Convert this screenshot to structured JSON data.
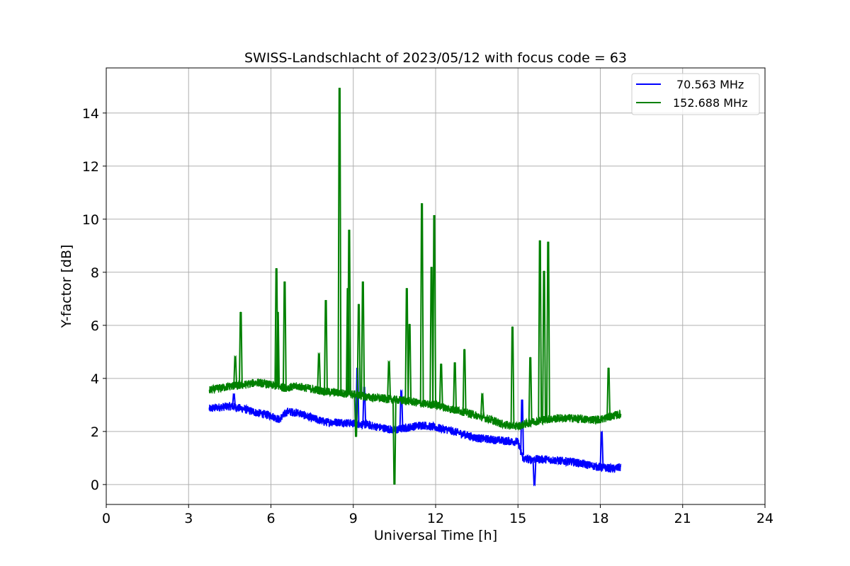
{
  "chart_data": {
    "type": "line",
    "title": "SWISS-Landschlacht of 2023/05/12 with focus code = 63",
    "xlabel": "Universal Time [h]",
    "ylabel": "Y-factor [dB]",
    "xlim": [
      0,
      24
    ],
    "ylim": [
      -0.75,
      15.7
    ],
    "xticks": [
      "0",
      "3",
      "6",
      "9",
      "12",
      "15",
      "18",
      "21",
      "24"
    ],
    "yticks": [
      "0",
      "2",
      "4",
      "6",
      "8",
      "10",
      "12",
      "14"
    ],
    "grid": true,
    "legend_position": "top-right",
    "series": [
      {
        "name": "70.563 MHz",
        "color": "#0000ff",
        "x": [
          3.75,
          4.0,
          4.5,
          5.0,
          5.5,
          6.0,
          6.3,
          6.6,
          7.0,
          7.5,
          8.0,
          8.5,
          9.0,
          9.5,
          10.0,
          10.5,
          11.0,
          11.5,
          12.0,
          12.5,
          13.0,
          13.5,
          14.0,
          14.5,
          15.0,
          15.2,
          15.5,
          16.0,
          16.5,
          17.0,
          17.5,
          18.0,
          18.5,
          18.75
        ],
        "y": [
          2.85,
          2.9,
          2.95,
          2.85,
          2.7,
          2.6,
          2.45,
          2.75,
          2.7,
          2.5,
          2.35,
          2.35,
          2.3,
          2.25,
          2.15,
          2.05,
          2.15,
          2.25,
          2.15,
          2.05,
          1.9,
          1.75,
          1.7,
          1.65,
          1.6,
          0.95,
          0.95,
          0.95,
          0.9,
          0.85,
          0.75,
          0.65,
          0.6,
          0.65
        ],
        "spikes": [
          {
            "x": 4.65,
            "y": 3.4
          },
          {
            "x": 9.15,
            "y": 4.4
          },
          {
            "x": 9.4,
            "y": 3.6
          },
          {
            "x": 10.75,
            "y": 3.5
          },
          {
            "x": 15.15,
            "y": 3.2
          },
          {
            "x": 15.6,
            "y": 0.0
          },
          {
            "x": 18.05,
            "y": 1.95
          }
        ]
      },
      {
        "name": "152.688 MHz",
        "color": "#008000",
        "x": [
          3.75,
          4.0,
          4.5,
          5.0,
          5.5,
          6.0,
          6.5,
          7.0,
          7.5,
          8.0,
          8.5,
          9.0,
          9.5,
          10.0,
          10.5,
          11.0,
          11.5,
          12.0,
          12.5,
          13.0,
          13.5,
          14.0,
          14.5,
          15.0,
          15.5,
          16.0,
          16.5,
          17.0,
          17.5,
          18.0,
          18.5,
          18.75
        ],
        "y": [
          3.55,
          3.6,
          3.7,
          3.75,
          3.85,
          3.75,
          3.65,
          3.7,
          3.6,
          3.5,
          3.45,
          3.4,
          3.3,
          3.25,
          3.2,
          3.15,
          3.05,
          3.0,
          2.85,
          2.75,
          2.6,
          2.45,
          2.25,
          2.2,
          2.35,
          2.45,
          2.5,
          2.5,
          2.45,
          2.45,
          2.6,
          2.65
        ],
        "spikes": [
          {
            "x": 4.7,
            "y": 4.8
          },
          {
            "x": 4.9,
            "y": 6.5
          },
          {
            "x": 6.2,
            "y": 8.15
          },
          {
            "x": 6.25,
            "y": 6.5
          },
          {
            "x": 6.5,
            "y": 7.65
          },
          {
            "x": 7.75,
            "y": 4.9
          },
          {
            "x": 8.0,
            "y": 6.95
          },
          {
            "x": 8.5,
            "y": 14.95
          },
          {
            "x": 8.8,
            "y": 7.4
          },
          {
            "x": 8.85,
            "y": 9.6
          },
          {
            "x": 9.1,
            "y": 1.8
          },
          {
            "x": 9.2,
            "y": 6.8
          },
          {
            "x": 9.35,
            "y": 7.65
          },
          {
            "x": 10.3,
            "y": 4.6
          },
          {
            "x": 10.5,
            "y": 0.0
          },
          {
            "x": 10.95,
            "y": 7.4
          },
          {
            "x": 11.05,
            "y": 6.05
          },
          {
            "x": 11.5,
            "y": 10.6
          },
          {
            "x": 11.85,
            "y": 8.2
          },
          {
            "x": 11.95,
            "y": 10.15
          },
          {
            "x": 12.2,
            "y": 4.55
          },
          {
            "x": 12.7,
            "y": 4.6
          },
          {
            "x": 13.05,
            "y": 5.1
          },
          {
            "x": 13.7,
            "y": 3.4
          },
          {
            "x": 14.8,
            "y": 5.95
          },
          {
            "x": 15.45,
            "y": 4.8
          },
          {
            "x": 15.8,
            "y": 9.2
          },
          {
            "x": 15.95,
            "y": 8.05
          },
          {
            "x": 16.1,
            "y": 9.15
          },
          {
            "x": 18.3,
            "y": 4.4
          }
        ]
      }
    ]
  }
}
